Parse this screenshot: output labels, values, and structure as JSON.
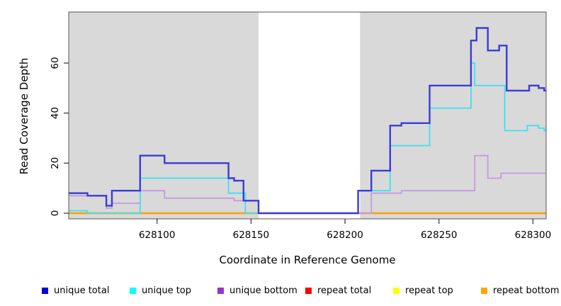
{
  "chart_data": {
    "type": "line",
    "style": "step-after coverage plot",
    "title": "",
    "xlabel": "Coordinate in Reference Genome",
    "ylabel": "Read Coverage Depth",
    "xlim": [
      628053,
      628307
    ],
    "ylim": [
      0,
      74
    ],
    "x_ticks": [
      "628100",
      "628150",
      "628200",
      "628250",
      "628300"
    ],
    "x_tick_values": [
      628100,
      628150,
      628200,
      628250,
      628300
    ],
    "y_ticks": [
      "0",
      "20",
      "40",
      "60"
    ],
    "y_tick_values": [
      0,
      20,
      40,
      60
    ],
    "grid": false,
    "panel_color": "#d9d9d9",
    "gap_band": {
      "start": 628154,
      "end": 628208,
      "color": "#ffffff"
    },
    "legend_position": "bottom",
    "series": [
      {
        "name": "repeat total",
        "line_color": "#dd0000",
        "legend_color": "#ff0000",
        "points": [
          [
            628053,
            0
          ],
          [
            628307,
            0
          ]
        ]
      },
      {
        "name": "repeat top",
        "line_color": "#f0f000",
        "legend_color": "#ffff00",
        "points": [
          [
            628053,
            0
          ],
          [
            628307,
            0
          ]
        ]
      },
      {
        "name": "repeat bottom",
        "line_color": "#ff9e00",
        "legend_color": "#ffa500",
        "points": [
          [
            628053,
            0
          ],
          [
            628307,
            0
          ]
        ]
      },
      {
        "name": "unique bottom",
        "line_color": "#c49ae2",
        "legend_color": "#9932cc",
        "points": [
          [
            628053,
            7
          ],
          [
            628073,
            2
          ],
          [
            628076,
            4
          ],
          [
            628091,
            9
          ],
          [
            628104,
            6
          ],
          [
            628141,
            5
          ],
          [
            628154,
            0
          ],
          [
            628214,
            8
          ],
          [
            628230,
            9
          ],
          [
            628269,
            23
          ],
          [
            628276,
            14
          ],
          [
            628283,
            16
          ],
          [
            628307,
            16
          ]
        ]
      },
      {
        "name": "unique top",
        "line_color": "#3fe0ef",
        "legend_color": "#00ffff",
        "points": [
          [
            628053,
            1
          ],
          [
            628063,
            0
          ],
          [
            628091,
            14
          ],
          [
            628138,
            8
          ],
          [
            628147,
            0
          ],
          [
            628207,
            9
          ],
          [
            628224,
            27
          ],
          [
            628245,
            42
          ],
          [
            628267,
            60
          ],
          [
            628269,
            51
          ],
          [
            628285,
            33
          ],
          [
            628297,
            35
          ],
          [
            628303,
            34
          ],
          [
            628306,
            33
          ],
          [
            628307,
            33
          ]
        ]
      },
      {
        "name": "unique total",
        "line_color": "#3b3bd9",
        "legend_color": "#0000e0",
        "points": [
          [
            628053,
            8
          ],
          [
            628063,
            7
          ],
          [
            628073,
            3
          ],
          [
            628076,
            9
          ],
          [
            628091,
            23
          ],
          [
            628104,
            20
          ],
          [
            628138,
            14
          ],
          [
            628141,
            13
          ],
          [
            628146,
            5
          ],
          [
            628154,
            0
          ],
          [
            628207,
            9
          ],
          [
            628214,
            17
          ],
          [
            628224,
            35
          ],
          [
            628230,
            36
          ],
          [
            628245,
            51
          ],
          [
            628267,
            69
          ],
          [
            628270,
            74
          ],
          [
            628276,
            65
          ],
          [
            628282,
            67
          ],
          [
            628286,
            49
          ],
          [
            628298,
            51
          ],
          [
            628303,
            50
          ],
          [
            628306,
            49
          ],
          [
            628307,
            49
          ]
        ]
      }
    ],
    "legend": [
      {
        "label": "unique total",
        "color": "#0000e0"
      },
      {
        "label": "unique top",
        "color": "#00ffff"
      },
      {
        "label": "unique bottom",
        "color": "#9932cc"
      },
      {
        "label": "repeat total",
        "color": "#ff0000"
      },
      {
        "label": "repeat top",
        "color": "#ffff00"
      },
      {
        "label": "repeat bottom",
        "color": "#ffa500"
      }
    ]
  }
}
